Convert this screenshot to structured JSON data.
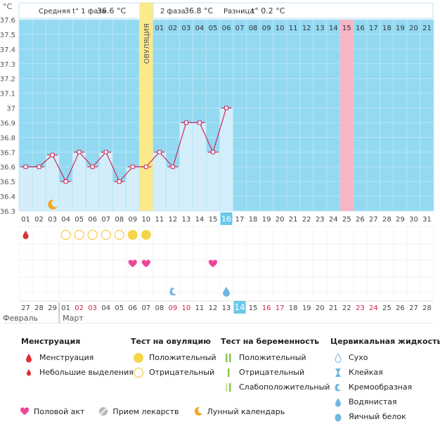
{
  "header": {
    "unit": "°C",
    "phase1_label": "Средняя t° 1 фаза",
    "phase1_value": "36.6 °C",
    "phase2_label": "2 фаза",
    "phase2_value": "36.8 °C",
    "diff_label": "Разница",
    "diff_value": "t° 0.2 °C"
  },
  "ovulation_label": "ОВУЛЯЦИЯ",
  "chart_data": {
    "type": "line",
    "unit": "°C",
    "ylim": [
      36.3,
      37.6
    ],
    "yticks": [
      "37.6",
      "37.5",
      "37.4",
      "37.3",
      "37.2",
      "37.1",
      "37",
      "36.9",
      "36.8",
      "36.7",
      "36.6",
      "36.5",
      "36.4",
      "36.3"
    ],
    "cycle_days": [
      "01",
      "02",
      "03",
      "04",
      "05",
      "06",
      "07",
      "08",
      "09",
      "10",
      "11",
      "12",
      "13",
      "14",
      "15",
      "16",
      "17",
      "18",
      "19",
      "20",
      "21",
      "22",
      "23",
      "24",
      "25",
      "26",
      "27",
      "28",
      "29",
      "30",
      "31"
    ],
    "post_ovulation_days": [
      "01",
      "02",
      "03",
      "04",
      "05",
      "06",
      "07",
      "08",
      "09",
      "10",
      "11",
      "12",
      "13",
      "14",
      "15",
      "16",
      "17",
      "18",
      "19",
      "20",
      "21"
    ],
    "highlighted_post_day": "15",
    "current_day": "16",
    "temperatures": [
      36.6,
      36.6,
      36.68,
      36.5,
      36.7,
      36.6,
      36.7,
      36.5,
      36.6,
      36.6,
      36.7,
      36.6,
      36.9,
      36.9,
      36.7,
      37.0
    ],
    "calendar_dates": [
      {
        "d": "27",
        "red": false
      },
      {
        "d": "28",
        "red": false
      },
      {
        "d": "29",
        "red": false
      },
      {
        "d": "01",
        "red": false
      },
      {
        "d": "02",
        "red": true
      },
      {
        "d": "03",
        "red": true
      },
      {
        "d": "04",
        "red": false
      },
      {
        "d": "05",
        "red": false
      },
      {
        "d": "06",
        "red": false
      },
      {
        "d": "07",
        "red": false
      },
      {
        "d": "08",
        "red": false
      },
      {
        "d": "09",
        "red": true
      },
      {
        "d": "10",
        "red": true
      },
      {
        "d": "11",
        "red": false
      },
      {
        "d": "12",
        "red": false
      },
      {
        "d": "13",
        "red": false
      },
      {
        "d": "14",
        "red": false
      },
      {
        "d": "15",
        "red": false
      },
      {
        "d": "16",
        "red": true
      },
      {
        "d": "17",
        "red": true
      },
      {
        "d": "18",
        "red": false
      },
      {
        "d": "19",
        "red": false
      },
      {
        "d": "20",
        "red": false
      },
      {
        "d": "21",
        "red": false
      },
      {
        "d": "22",
        "red": false
      },
      {
        "d": "23",
        "red": true
      },
      {
        "d": "24",
        "red": true
      },
      {
        "d": "25",
        "red": false
      },
      {
        "d": "26",
        "red": false
      },
      {
        "d": "27",
        "red": false
      },
      {
        "d": "28",
        "red": false
      }
    ],
    "month1": "Февраль",
    "month2": "Март",
    "events": {
      "menstruation_day": 1,
      "ovulation_tests": [
        {
          "day": 4,
          "result": "negative"
        },
        {
          "day": 5,
          "result": "negative"
        },
        {
          "day": 6,
          "result": "negative"
        },
        {
          "day": 7,
          "result": "negative"
        },
        {
          "day": 8,
          "result": "negative"
        },
        {
          "day": 9,
          "result": "positive"
        },
        {
          "day": 10,
          "result": "positive"
        }
      ],
      "intercourse_days": [
        9,
        10,
        15
      ],
      "cervical_fluid": [
        {
          "day": 12,
          "type": "creamy"
        },
        {
          "day": 16,
          "type": "watery"
        }
      ],
      "moon_day": 3
    }
  },
  "legend": {
    "menstruation": {
      "title": "Менструация",
      "items": [
        "Менструация",
        "Небольшие выделения"
      ]
    },
    "ovulation_test": {
      "title": "Тест на овуляцию",
      "items": [
        "Положительный",
        "Отрицательный"
      ]
    },
    "pregnancy_test": {
      "title": "Тест на беременность",
      "items": [
        "Положительный",
        "Отрицательный",
        "Слабоположительный"
      ]
    },
    "cervical": {
      "title": "Цервикальная жидкость",
      "items": [
        "Сухо",
        "Клейкая",
        "Кремообразная",
        "Водянистая",
        "Яичный белок"
      ]
    },
    "bottom": [
      "Половой акт",
      "Прием лекарств",
      "Лунный календарь"
    ]
  },
  "colors": {
    "plot_bg": "#93d9f2",
    "fill": "#d3eefa",
    "line": "#cc2a5c",
    "ovulation": "#fce98a",
    "highlight": "#f7b6c6",
    "current": "#6ac8ea"
  }
}
